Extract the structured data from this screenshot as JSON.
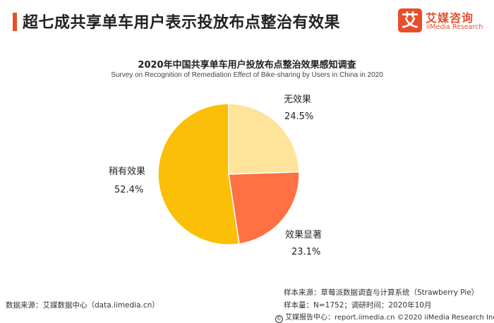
{
  "header": {
    "headline": "超七成共享单车用户表示投放布点整治有效果"
  },
  "logo": {
    "badge_glyph": "艾",
    "name_cn": "艾媒咨询",
    "name_en": "iiMedia Research"
  },
  "chart_data": {
    "type": "pie",
    "title": "2020年中国共享单车用户投放布点整治效果感知调查",
    "subtitle": "Survey on Recognition of Remediation Effect of Bike-sharing by Users in China in 2020",
    "slices": [
      {
        "label": "无效果",
        "value": 24.5,
        "display": "24.5%",
        "color": "#fde49a"
      },
      {
        "label": "效果显著",
        "value": 23.1,
        "display": "23.1%",
        "color": "#ff7043"
      },
      {
        "label": "稍有效果",
        "value": 52.4,
        "display": "52.4%",
        "color": "#fbbf07"
      }
    ],
    "start": "12 o'clock",
    "direction": "clockwise"
  },
  "footer": {
    "source": "数据来源：艾媒数据中心（data.iimedia.cn）",
    "sample_source": "样本来源：草莓派数据调查与计算系统（Strawberry Pie）",
    "sample_info": "样本量：N=1752；调研时间：2020年10月",
    "copyright": "艾媒报告中心：report.iimedia.cn ©2020  iiMedia Research  Inc"
  }
}
